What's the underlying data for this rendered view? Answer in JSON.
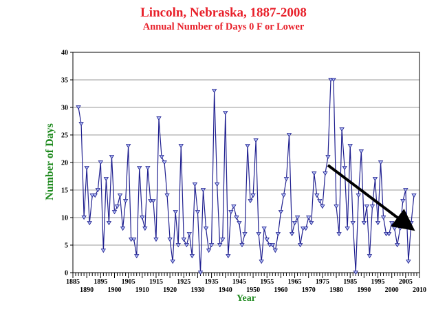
{
  "chart_data": {
    "type": "line",
    "title": "Lincoln, Nebraska, 1887-2008",
    "subtitle": "Annual Number of Days 0 F or Lower",
    "xlabel": "Year",
    "ylabel": "Number of Days",
    "xlim": [
      1885,
      2010
    ],
    "ylim": [
      0,
      40
    ],
    "x_ticks_upper": [
      1885,
      1895,
      1905,
      1915,
      1925,
      1935,
      1945,
      1955,
      1965,
      1975,
      1985,
      1995,
      2005
    ],
    "x_ticks_lower": [
      1890,
      1900,
      1910,
      1920,
      1930,
      1940,
      1950,
      1960,
      1970,
      1980,
      1990,
      2000,
      2010
    ],
    "y_ticks": [
      0,
      5,
      10,
      15,
      20,
      25,
      30,
      35,
      40
    ],
    "grid": "horizontal",
    "colors": {
      "line": "#1f1f8f",
      "marker_fill": "#a8b4f0",
      "grid": "#9a9a9a",
      "trend_arrow": "#000000"
    },
    "series": [
      {
        "x": [
          1887,
          1888,
          1889,
          1890,
          1891,
          1892,
          1893,
          1894,
          1895,
          1896,
          1897,
          1898,
          1899,
          1900,
          1901,
          1902,
          1903,
          1904,
          1905,
          1906,
          1907,
          1908,
          1909,
          1910,
          1911,
          1912,
          1913,
          1914,
          1915,
          1916,
          1917,
          1918,
          1919,
          1920,
          1921,
          1922,
          1923,
          1924,
          1925,
          1926,
          1927,
          1928,
          1929,
          1930,
          1931,
          1932,
          1933,
          1934,
          1935,
          1936,
          1937,
          1938,
          1939,
          1940,
          1941,
          1942,
          1943,
          1944,
          1945,
          1946,
          1947,
          1948,
          1949,
          1950,
          1951,
          1952,
          1953,
          1954,
          1955,
          1956,
          1957,
          1958,
          1959,
          1960,
          1961,
          1962,
          1963,
          1964,
          1965,
          1966,
          1967,
          1968,
          1969,
          1970,
          1971,
          1972,
          1973,
          1974,
          1975,
          1976,
          1977,
          1978,
          1979,
          1980,
          1981,
          1982,
          1983,
          1984,
          1985,
          1986,
          1987,
          1988,
          1989,
          1990,
          1991,
          1992,
          1993,
          1994,
          1995,
          1996,
          1997,
          1998,
          1999,
          2000,
          2001,
          2002,
          2003,
          2004,
          2005,
          2006,
          2007,
          2008
        ],
        "values": [
          30,
          27,
          10,
          19,
          9,
          14,
          14,
          15,
          20,
          4,
          17,
          9,
          21,
          11,
          12,
          14,
          8,
          13,
          23,
          6,
          6,
          3,
          19,
          10,
          8,
          19,
          13,
          13,
          6,
          28,
          21,
          20,
          14,
          6,
          2,
          11,
          5,
          23,
          6,
          5,
          7,
          3,
          16,
          11,
          0,
          15,
          8,
          4,
          5,
          33,
          16,
          5,
          6,
          29,
          3,
          11,
          12,
          10,
          9,
          5,
          7,
          23,
          13,
          14,
          24,
          7,
          2,
          8,
          6,
          5,
          5,
          4,
          7,
          11,
          14,
          17,
          25,
          7,
          9,
          10,
          5,
          8,
          8,
          10,
          9,
          18,
          14,
          13,
          12,
          18,
          21,
          35,
          35,
          12,
          7,
          26,
          19,
          8,
          23,
          9,
          0,
          14,
          22,
          9,
          12,
          3,
          12,
          17,
          9,
          20,
          10,
          7,
          7,
          9,
          8,
          5,
          8,
          13,
          15,
          2,
          9,
          14
        ]
      }
    ],
    "annotations": [
      {
        "type": "trend-arrow",
        "from": [
          1977,
          19.5
        ],
        "to": [
          2006,
          8.5
        ]
      }
    ]
  }
}
